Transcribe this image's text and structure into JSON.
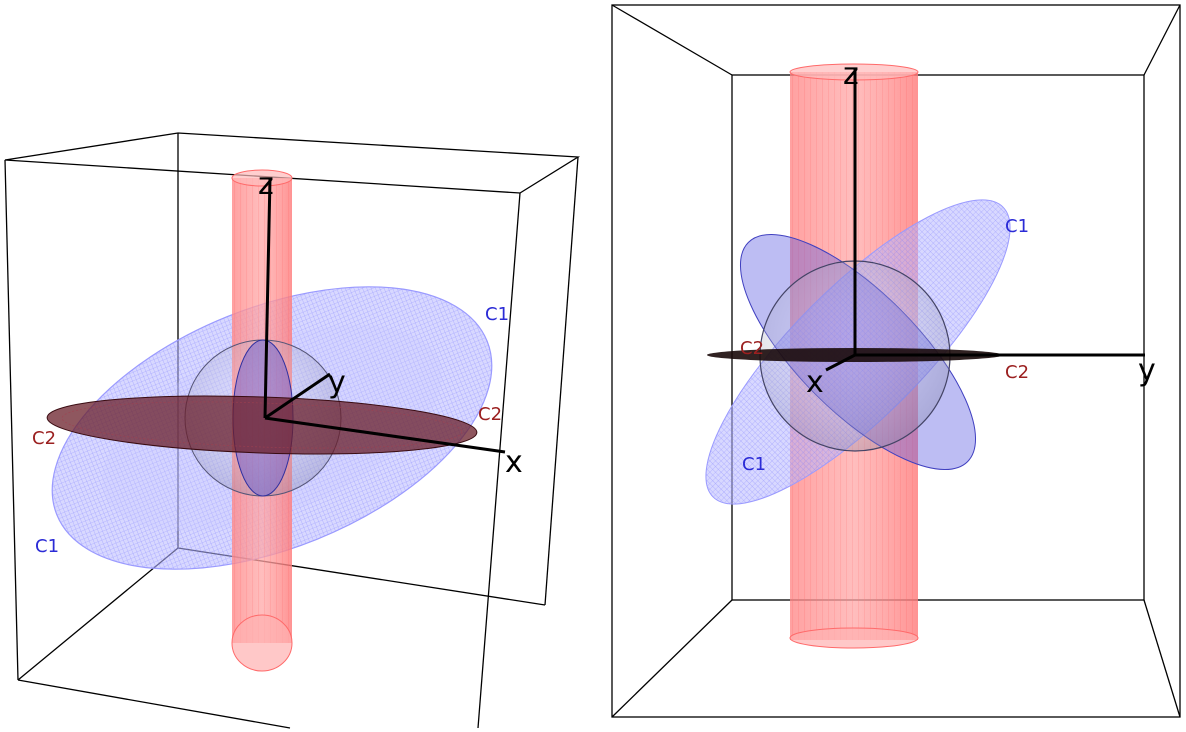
{
  "panels": [
    {
      "axes": {
        "x": "x",
        "y": "y",
        "z": "z"
      },
      "curve_labels": {
        "c1_top": "C1",
        "c1_bottom": "C1",
        "c2_left": "C2",
        "c2_right": "C2"
      }
    },
    {
      "axes": {
        "x": "x",
        "y": "y",
        "z": "z"
      },
      "curve_labels": {
        "c1_top": "C1",
        "c1_bottom": "C1",
        "c2_left": "C2",
        "c2_right": "C2"
      }
    }
  ],
  "colors": {
    "cylinder": "#ff6f6f",
    "ellipsoid": "#7d7dff",
    "disc": "#6a1f2a",
    "c1": "#2b2bd6",
    "c2": "#9b2020",
    "box": "#000000"
  }
}
